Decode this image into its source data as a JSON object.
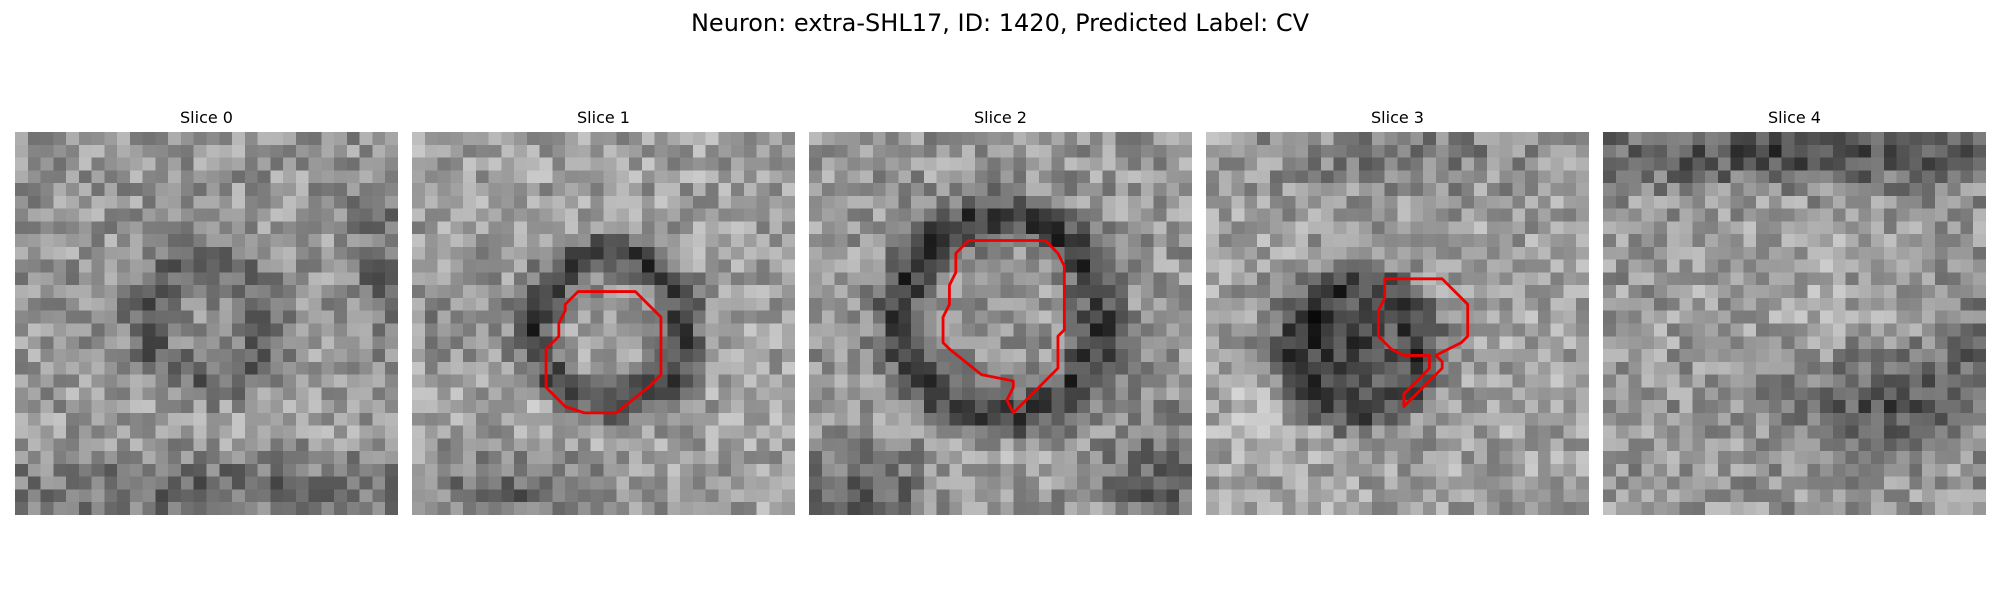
{
  "figure": {
    "title": "Neuron: extra-SHL17, ID: 1420, Predicted Label: CV"
  },
  "colors": {
    "background": "#ffffff",
    "contour": "#ee0000",
    "colormap": "gray"
  },
  "panels": [
    {
      "title": "Slice 0",
      "has_contour": false,
      "image_description": "grayscale noisy microscopy patch, faint dark ring in center"
    },
    {
      "title": "Slice 1",
      "has_contour": true,
      "image_description": "dark circular ring around center, red outline on inner region"
    },
    {
      "title": "Slice 2",
      "has_contour": true,
      "image_description": "large dark ring, red outline inside ring with tail at bottom"
    },
    {
      "title": "Slice 3",
      "has_contour": true,
      "image_description": "dark blob at left-center, red hook-shaped outline"
    },
    {
      "title": "Slice 4",
      "has_contour": false,
      "image_description": "grayscale noisy patch, darker band near top and lower right"
    }
  ]
}
